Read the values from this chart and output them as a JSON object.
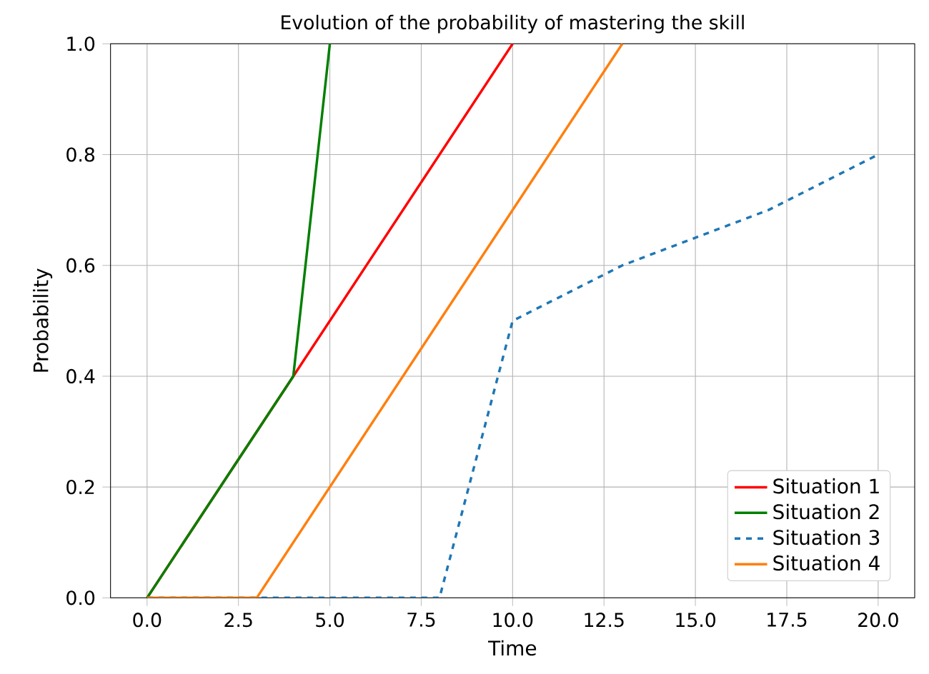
{
  "chart_data": {
    "type": "line",
    "title": "Evolution of the probability of mastering the skill",
    "xlabel": "Time",
    "ylabel": "Probability",
    "xlim": [
      -1,
      21
    ],
    "ylim": [
      0,
      1
    ],
    "xticks": [
      {
        "value": 0,
        "label": "0.0"
      },
      2.5,
      {
        "value": 5,
        "label": "5.0"
      },
      7.5,
      {
        "value": 10,
        "label": "10.0"
      },
      12.5,
      {
        "value": 15,
        "label": "15.0"
      },
      17.5,
      {
        "value": 20,
        "label": "20.0"
      }
    ],
    "yticks": [
      {
        "value": 0,
        "label": "0.0"
      },
      0.2,
      0.4,
      0.6,
      0.8,
      {
        "value": 1,
        "label": "1.0"
      }
    ],
    "grid": true,
    "legend": "bottom right",
    "marker": "none",
    "series": [
      {
        "name": "Situation 1",
        "color": "#ff0000",
        "line_style": "solid",
        "x": [
          0,
          4,
          10
        ],
        "values": [
          0,
          0.4,
          1.0
        ]
      },
      {
        "name": "Situation 2",
        "color": "#008000",
        "line_style": "solid",
        "x": [
          0,
          4,
          5
        ],
        "values": [
          0,
          0.4,
          1.0
        ]
      },
      {
        "name": "Situation 3",
        "color": "#1f77b4",
        "line_style": "dashed",
        "x": [
          0,
          8,
          10,
          13,
          17,
          20
        ],
        "values": [
          0,
          0,
          0.5,
          0.6,
          0.7,
          0.8
        ]
      },
      {
        "name": "Situation 4",
        "color": "#ff7f0e",
        "line_style": "solid",
        "x": [
          0,
          3,
          13
        ],
        "values": [
          0,
          0,
          1.0
        ]
      }
    ]
  }
}
